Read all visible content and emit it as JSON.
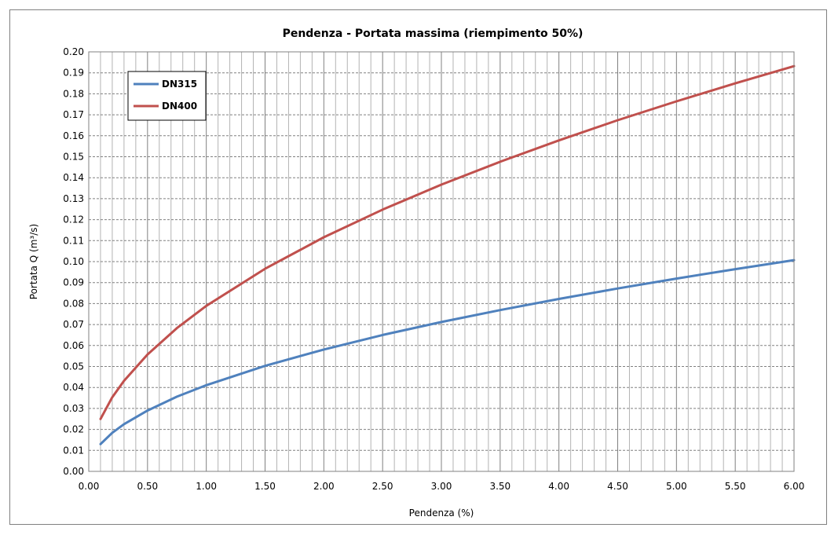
{
  "chart_data": {
    "type": "line",
    "title": "Pendenza - Portata massima (riempimento 50%)",
    "xlabel": "Pendenza (%)",
    "ylabel": "Portata Q (m³/s)",
    "xlim": [
      0,
      6
    ],
    "ylim": [
      0,
      0.2
    ],
    "x_ticks": [
      "0.00",
      "0.50",
      "1.00",
      "1.50",
      "2.00",
      "2.50",
      "3.00",
      "3.50",
      "4.00",
      "4.50",
      "5.00",
      "5.50",
      "6.00"
    ],
    "y_ticks": [
      "0.00",
      "0.01",
      "0.02",
      "0.03",
      "0.04",
      "0.05",
      "0.06",
      "0.07",
      "0.08",
      "0.09",
      "0.10",
      "0.11",
      "0.12",
      "0.13",
      "0.14",
      "0.15",
      "0.16",
      "0.17",
      "0.18",
      "0.19",
      "0.20"
    ],
    "grid": true,
    "legend_position": "top-left",
    "series": [
      {
        "name": "DN315",
        "color": "#4F81BD",
        "x": [
          0.1,
          0.2,
          0.3,
          0.5,
          0.75,
          1.0,
          1.5,
          2.0,
          2.5,
          3.0,
          3.5,
          4.0,
          4.5,
          5.0,
          5.5,
          6.0
        ],
        "y": [
          0.013,
          0.0184,
          0.0225,
          0.029,
          0.0356,
          0.0411,
          0.0503,
          0.0581,
          0.065,
          0.0712,
          0.0769,
          0.0822,
          0.0872,
          0.0919,
          0.0964,
          0.1007
        ]
      },
      {
        "name": "DN400",
        "color": "#C0504D",
        "x": [
          0.1,
          0.2,
          0.3,
          0.5,
          0.75,
          1.0,
          1.5,
          2.0,
          2.5,
          3.0,
          3.5,
          4.0,
          4.5,
          5.0,
          5.5,
          6.0
        ],
        "y": [
          0.025,
          0.0353,
          0.0432,
          0.0557,
          0.0683,
          0.0789,
          0.0966,
          0.1116,
          0.1248,
          0.1367,
          0.1476,
          0.1578,
          0.1674,
          0.1764,
          0.185,
          0.1932
        ]
      }
    ]
  }
}
